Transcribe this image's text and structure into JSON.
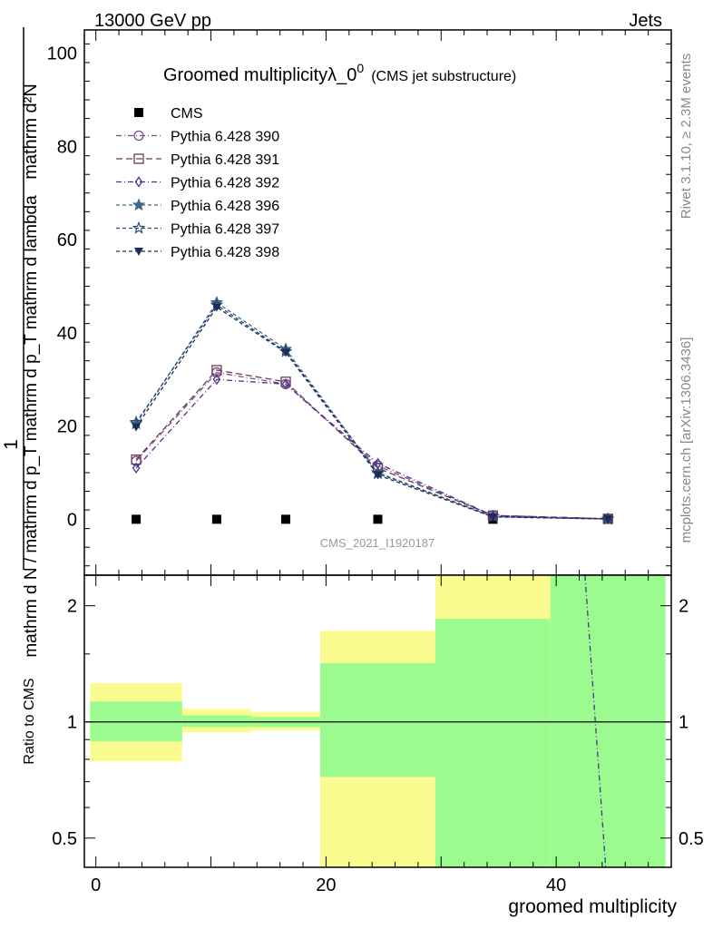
{
  "header": {
    "left": "13000 GeV pp",
    "right": "Jets"
  },
  "side_text": {
    "rivet": "Rivet 3.1.10, ≥ 2.3M events",
    "mcplots": "mcplots.cern.ch [arXiv:1306.3436]"
  },
  "watermark": "CMS_2021_I1920187",
  "chart_data": [
    {
      "type": "line",
      "title": "Groomed multiplicityλ_0",
      "title_sup": "0",
      "subtitle": "(CMS jet substructure)",
      "ylabel_top": "1",
      "ylabel_frac_num": "mathrm d²N",
      "ylabel_frac_den": "mathrm d N / mathrm d p_T mathrm d p_T mathrm d lambda",
      "xlim": [
        -1,
        50
      ],
      "ylim": [
        -12,
        105
      ],
      "yticks": [
        0,
        20,
        40,
        60,
        80,
        100
      ],
      "x": [
        3.5,
        10.5,
        16.5,
        24.5,
        34.5,
        44.5
      ],
      "series": [
        {
          "name": "CMS",
          "marker": "filled-square",
          "color": "#000000",
          "values": [
            0,
            0,
            0,
            0,
            0,
            0
          ]
        },
        {
          "name": "Pythia 6.428 390",
          "marker": "open-circle",
          "color": "#7a4a8a",
          "dash": "6,3,1,3",
          "values": [
            12.5,
            31.5,
            29.0,
            11.5,
            0.8,
            0.1
          ]
        },
        {
          "name": "Pythia 6.428 391",
          "marker": "open-square",
          "color": "#6b3d55",
          "dash": "7,4",
          "values": [
            12.8,
            32.0,
            29.5,
            11.0,
            0.8,
            0.1
          ]
        },
        {
          "name": "Pythia 6.428 392",
          "marker": "open-diamond",
          "color": "#4d3390",
          "dash": "6,3,1,3",
          "values": [
            11.0,
            30.0,
            29.0,
            12.0,
            0.8,
            0.1
          ]
        },
        {
          "name": "Pythia 6.428 396",
          "marker": "filled-star",
          "color": "#3a6a80",
          "dash": "4,3",
          "values": [
            20.5,
            46.5,
            36.5,
            9.8,
            0.6,
            0.05
          ]
        },
        {
          "name": "Pythia 6.428 397",
          "marker": "open-star",
          "color": "#2a4a78",
          "dash": "4,3",
          "values": [
            20.8,
            46.0,
            36.0,
            10.0,
            0.6,
            0.05
          ]
        },
        {
          "name": "Pythia 6.428 398",
          "marker": "filled-down-triangle",
          "color": "#1e2a5a",
          "dash": "4,3",
          "values": [
            19.8,
            45.5,
            35.8,
            9.5,
            0.5,
            0.05
          ]
        }
      ]
    },
    {
      "type": "area",
      "ylabel": "Ratio to CMS",
      "xlabel": "groomed multiplicity",
      "xlim": [
        -1,
        50
      ],
      "ylim": [
        0.42,
        2.4
      ],
      "scale": "log",
      "yticks": [
        0.5,
        1,
        2
      ],
      "xticks": [
        0,
        20,
        40
      ],
      "bins": [
        {
          "x0": -0.5,
          "x1": 7.5,
          "green": [
            0.89,
            1.13
          ],
          "yellow": [
            0.79,
            1.26
          ]
        },
        {
          "x0": 7.5,
          "x1": 13.5,
          "green": [
            0.97,
            1.04
          ],
          "yellow": [
            0.94,
            1.08
          ]
        },
        {
          "x0": 13.5,
          "x1": 19.5,
          "green": [
            0.97,
            1.03
          ],
          "yellow": [
            0.95,
            1.06
          ]
        },
        {
          "x0": 19.5,
          "x1": 29.5,
          "green": [
            0.72,
            1.42
          ],
          "yellow": [
            0.42,
            1.72
          ]
        },
        {
          "x0": 29.5,
          "x1": 39.5,
          "green": [
            0.42,
            1.85
          ],
          "yellow": [
            0.42,
            2.4
          ]
        },
        {
          "x0": 39.5,
          "x1": 49.5,
          "green": [
            0.42,
            2.4
          ],
          "yellow": [
            0.42,
            2.4
          ]
        }
      ],
      "ratio_line": {
        "color": "#4d3390",
        "points": [
          [
            42.5,
            2.4
          ],
          [
            44.3,
            0.42
          ]
        ]
      }
    }
  ]
}
